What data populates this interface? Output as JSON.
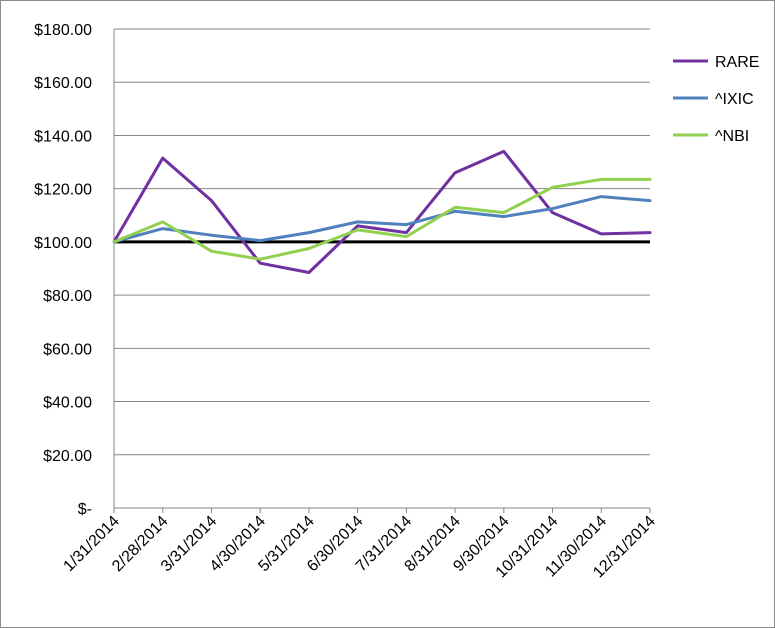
{
  "chart_data": {
    "type": "line",
    "title": "",
    "xlabel": "",
    "ylabel": "",
    "categories": [
      "1/31/2014",
      "2/28/2014",
      "3/31/2014",
      "4/30/2014",
      "5/31/2014",
      "6/30/2014",
      "7/31/2014",
      "8/31/2014",
      "9/30/2014",
      "10/31/2014",
      "11/30/2014",
      "12/31/2014"
    ],
    "ylim": [
      0,
      180
    ],
    "yticks": [
      0,
      20,
      40,
      60,
      80,
      100,
      120,
      140,
      160,
      180
    ],
    "ytick_labels": [
      "$-",
      "$20.00",
      "$40.00",
      "$60.00",
      "$80.00",
      "$100.00",
      "$120.00",
      "$140.00",
      "$160.00",
      "$180.00"
    ],
    "grid": true,
    "legend_position": "top-right",
    "reference_line": {
      "value": 100,
      "color": "#000000"
    },
    "series": [
      {
        "name": "RARE",
        "color": "#7030A0",
        "values": [
          100,
          131.5,
          115.5,
          92,
          88.5,
          106,
          103.5,
          126,
          134,
          111,
          103,
          103.5
        ]
      },
      {
        "name": "^IXIC",
        "color": "#4F81BD",
        "values": [
          100,
          105,
          102.5,
          100.5,
          103.5,
          107.5,
          106.5,
          111.5,
          109.5,
          112.5,
          117,
          115.5
        ]
      },
      {
        "name": "^NBI",
        "color": "#92D050",
        "values": [
          100,
          107.5,
          96.5,
          93.5,
          97.5,
          104.5,
          102,
          113,
          111,
          120.5,
          123.5,
          123.5
        ]
      }
    ]
  }
}
